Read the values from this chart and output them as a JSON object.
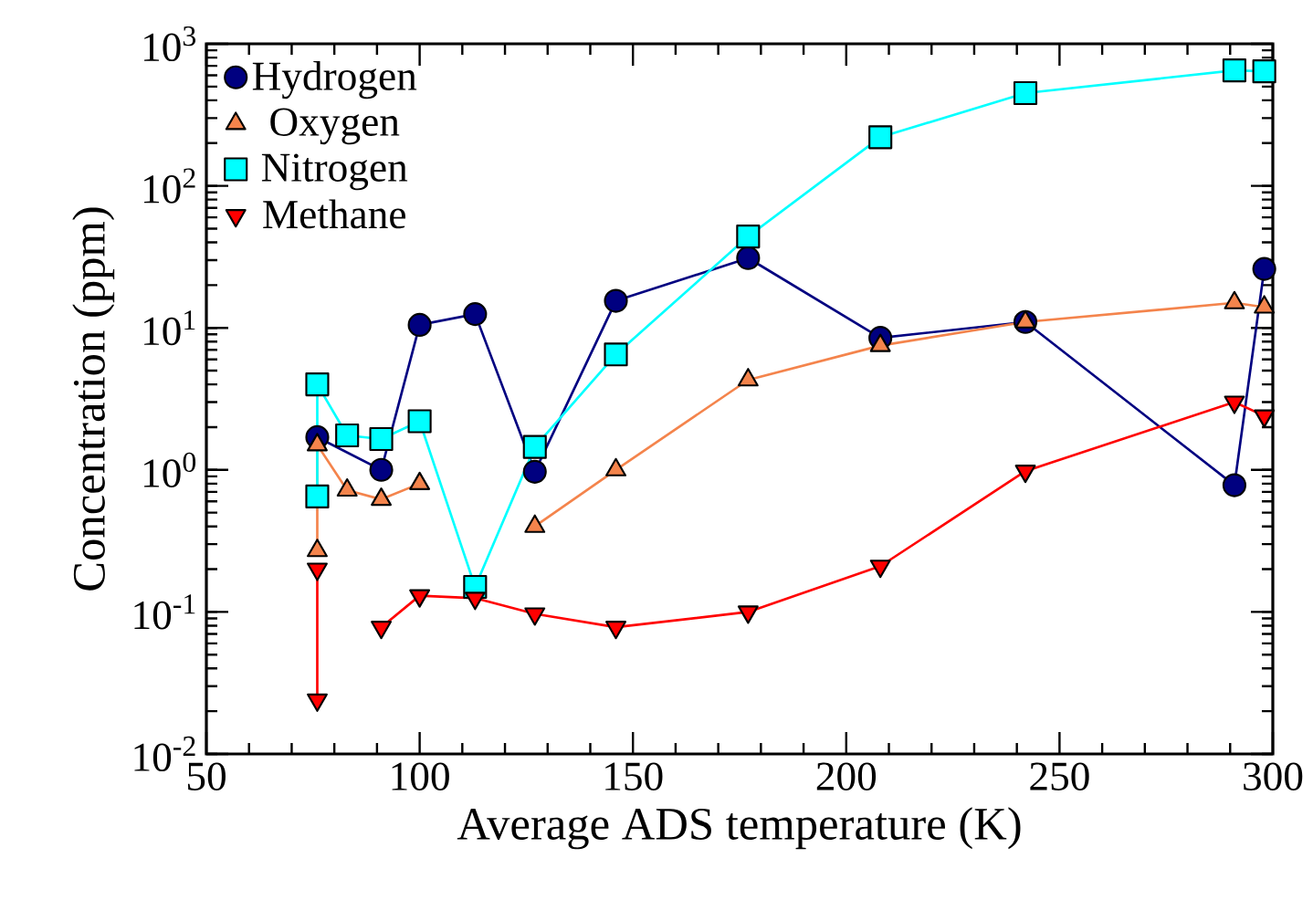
{
  "chart_data": {
    "type": "line",
    "xlabel": "Average ADS temperature (K)",
    "ylabel": "Concentration (ppm)",
    "xlim": [
      50,
      300
    ],
    "xticks": [
      50,
      100,
      150,
      200,
      250,
      300
    ],
    "ylim": [
      0.01,
      1000
    ],
    "yticks": [
      {
        "value": 0.01,
        "label": "10$^{-2}$"
      },
      {
        "value": 0.1,
        "label": "10$^{-1}$"
      },
      {
        "value": 1,
        "label": "10$^{0}$"
      },
      {
        "value": 10,
        "label": "10$^{1}$"
      },
      {
        "value": 100,
        "label": "10$^{2}$"
      },
      {
        "value": 1000,
        "label": "10$^{3}$"
      }
    ],
    "log": "y",
    "legend": "top left",
    "line_style": "solid",
    "series": [
      {
        "name": "Hydrogen",
        "color": "#000080",
        "marker": "circle",
        "x": [
          76,
          91,
          100,
          113,
          127,
          146,
          177,
          208,
          242,
          291,
          298
        ],
        "values": [
          1.7,
          1.0,
          10.5,
          12.5,
          0.97,
          15.5,
          31,
          8.5,
          11,
          0.78,
          26
        ]
      },
      {
        "name": "Oxygen",
        "color": "#f4844c",
        "marker": "triangle",
        "x": [
          76,
          76,
          83,
          91,
          100,
          113,
          127,
          146,
          177,
          208,
          242,
          291,
          298
        ],
        "values": [
          0.27,
          1.5,
          0.72,
          0.62,
          0.8,
          null,
          0.4,
          1.0,
          4.3,
          7.5,
          11,
          15,
          14
        ]
      },
      {
        "name": "Nitrogen",
        "color": "#00ffff",
        "marker": "square",
        "x": [
          76,
          76,
          83,
          91,
          100,
          113,
          127,
          146,
          177,
          208,
          242,
          291,
          298
        ],
        "values": [
          0.65,
          4.0,
          1.75,
          1.65,
          2.2,
          0.15,
          1.45,
          6.5,
          44,
          220,
          450,
          650,
          640
        ]
      },
      {
        "name": "Methane",
        "color": "#ff0000",
        "marker": "triangle down",
        "x": [
          76,
          76,
          83,
          91,
          100,
          113,
          127,
          146,
          177,
          208,
          242,
          291,
          298
        ],
        "values": [
          0.024,
          0.2,
          null,
          0.078,
          0.13,
          0.125,
          0.097,
          0.078,
          0.1,
          0.21,
          0.98,
          3.0,
          2.4
        ]
      }
    ]
  }
}
